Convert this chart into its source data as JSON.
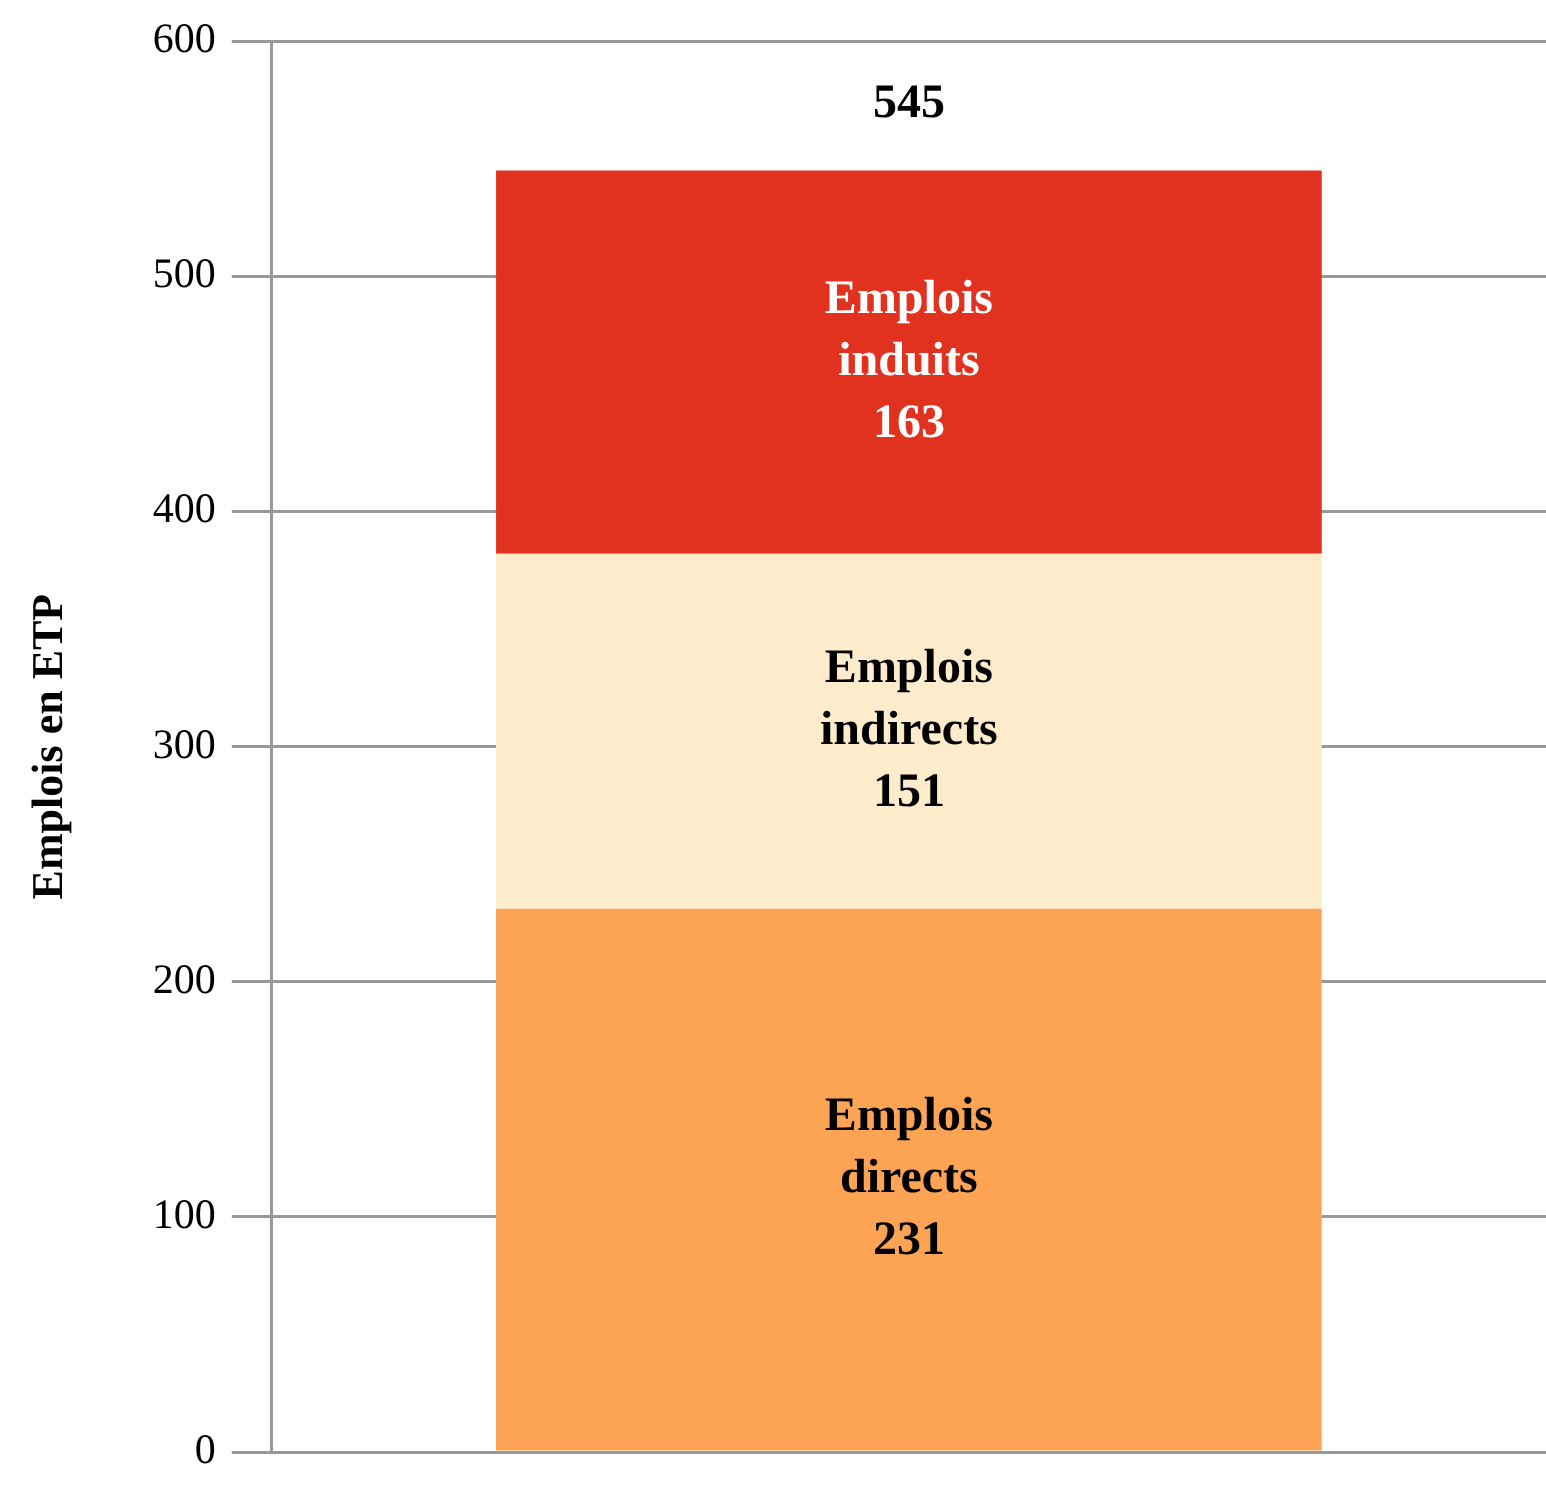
{
  "chart_data": {
    "type": "bar",
    "stacked": true,
    "categories": [
      null
    ],
    "ylabel": "Emplois en ETP",
    "ylim": [
      0,
      600
    ],
    "yticks": [
      0,
      100,
      200,
      300,
      400,
      500,
      600
    ],
    "grid": "y",
    "legend": false,
    "data_labels": true,
    "totals": [
      "545"
    ],
    "series": [
      {
        "name": "Emplois directs",
        "color": "#fca453",
        "values": [
          231
        ]
      },
      {
        "name": "Emplois indirects",
        "color": "#fdeccb",
        "values": [
          151
        ]
      },
      {
        "name": "Emplois induits",
        "color": "#e0321f",
        "values": [
          163
        ]
      }
    ]
  }
}
